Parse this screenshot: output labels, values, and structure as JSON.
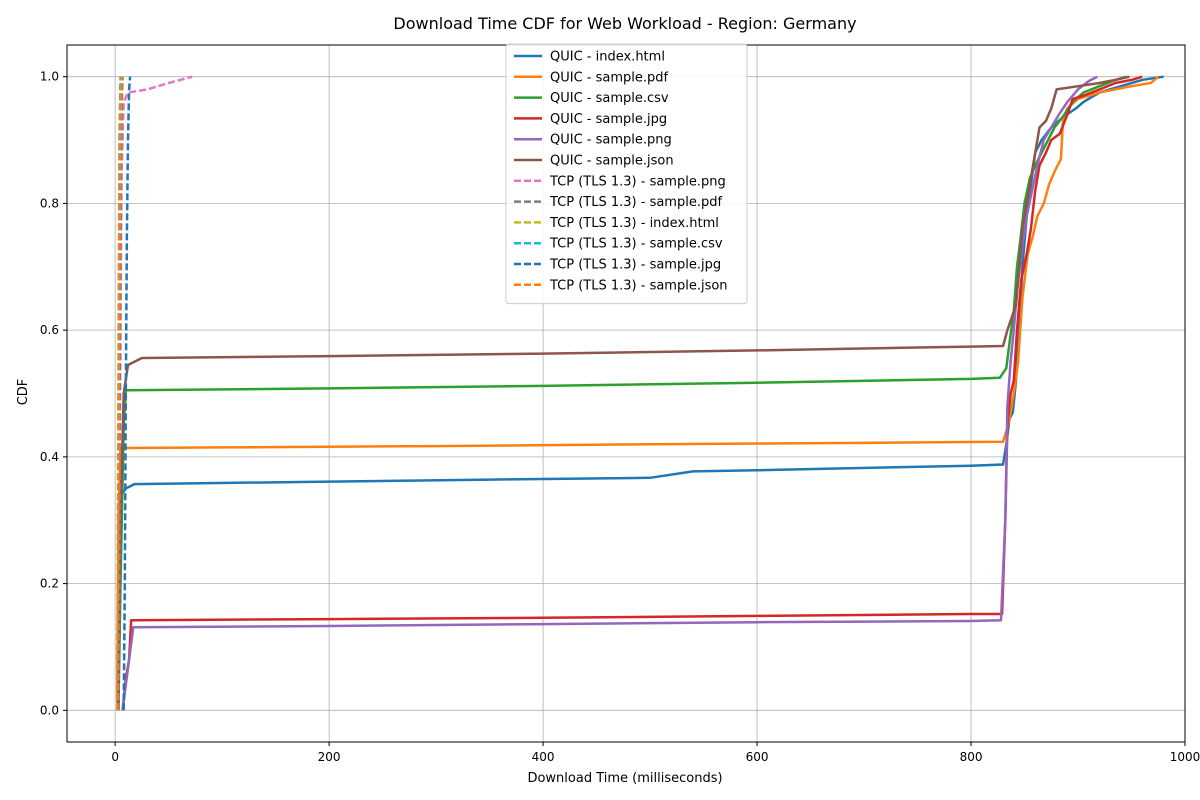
{
  "chart_data": {
    "type": "line",
    "title": "Download Time CDF for Web Workload - Region: Germany",
    "xlabel": "Download Time (milliseconds)",
    "ylabel": "CDF",
    "xlim": [
      -45,
      1000
    ],
    "ylim": [
      -0.05,
      1.05
    ],
    "xticks": [
      0,
      200,
      400,
      600,
      800,
      1000
    ],
    "yticks": [
      0.0,
      0.2,
      0.4,
      0.6,
      0.8,
      1.0
    ],
    "xtick_labels": [
      "0",
      "200",
      "400",
      "600",
      "800",
      "1000"
    ],
    "ytick_labels": [
      "0.0",
      "0.2",
      "0.4",
      "0.6",
      "0.8",
      "1.0"
    ],
    "grid": true,
    "legend_position": "top-center",
    "series": [
      {
        "name": "QUIC - index.html",
        "color": "#1f77b4",
        "dash": "solid",
        "points": [
          [
            3,
            0
          ],
          [
            4,
            0.2
          ],
          [
            6,
            0.34
          ],
          [
            10,
            0.35
          ],
          [
            18,
            0.357
          ],
          [
            200,
            0.361
          ],
          [
            400,
            0.365
          ],
          [
            500,
            0.367
          ],
          [
            540,
            0.377
          ],
          [
            600,
            0.379
          ],
          [
            800,
            0.386
          ],
          [
            830,
            0.388
          ],
          [
            833,
            0.42
          ],
          [
            836,
            0.46
          ],
          [
            839,
            0.47
          ],
          [
            842,
            0.52
          ],
          [
            845,
            0.6
          ],
          [
            848,
            0.7
          ],
          [
            852,
            0.78
          ],
          [
            856,
            0.83
          ],
          [
            860,
            0.88
          ],
          [
            866,
            0.9
          ],
          [
            875,
            0.92
          ],
          [
            885,
            0.935
          ],
          [
            898,
            0.95
          ],
          [
            905,
            0.96
          ],
          [
            920,
            0.975
          ],
          [
            940,
            0.985
          ],
          [
            960,
            0.995
          ],
          [
            980,
            1.0
          ]
        ]
      },
      {
        "name": "QUIC - sample.pdf",
        "color": "#ff7f0e",
        "dash": "solid",
        "points": [
          [
            2,
            0
          ],
          [
            3,
            0.3
          ],
          [
            5,
            0.414
          ],
          [
            100,
            0.415
          ],
          [
            300,
            0.417
          ],
          [
            500,
            0.42
          ],
          [
            700,
            0.422
          ],
          [
            830,
            0.424
          ],
          [
            833,
            0.44
          ],
          [
            836,
            0.46
          ],
          [
            840,
            0.5
          ],
          [
            844,
            0.55
          ],
          [
            848,
            0.65
          ],
          [
            853,
            0.72
          ],
          [
            858,
            0.75
          ],
          [
            862,
            0.78
          ],
          [
            868,
            0.8
          ],
          [
            873,
            0.83
          ],
          [
            878,
            0.85
          ],
          [
            884,
            0.87
          ],
          [
            886,
            0.93
          ],
          [
            890,
            0.95
          ],
          [
            900,
            0.965
          ],
          [
            920,
            0.975
          ],
          [
            950,
            0.985
          ],
          [
            968,
            0.99
          ],
          [
            975,
            1.0
          ]
        ]
      },
      {
        "name": "QUIC - sample.csv",
        "color": "#2ca02c",
        "dash": "solid",
        "points": [
          [
            3,
            0
          ],
          [
            5,
            0.2
          ],
          [
            8,
            0.45
          ],
          [
            10,
            0.505
          ],
          [
            200,
            0.508
          ],
          [
            400,
            0.512
          ],
          [
            600,
            0.517
          ],
          [
            800,
            0.523
          ],
          [
            827,
            0.525
          ],
          [
            833,
            0.54
          ],
          [
            836,
            0.58
          ],
          [
            840,
            0.63
          ],
          [
            843,
            0.7
          ],
          [
            846,
            0.74
          ],
          [
            850,
            0.8
          ],
          [
            855,
            0.84
          ],
          [
            860,
            0.86
          ],
          [
            866,
            0.88
          ],
          [
            872,
            0.9
          ],
          [
            878,
            0.92
          ],
          [
            885,
            0.935
          ],
          [
            895,
            0.96
          ],
          [
            905,
            0.975
          ],
          [
            920,
            0.985
          ],
          [
            935,
            0.995
          ],
          [
            945,
            1.0
          ]
        ]
      },
      {
        "name": "QUIC - sample.jpg",
        "color": "#d62728",
        "dash": "solid",
        "points": [
          [
            7,
            0
          ],
          [
            10,
            0.05
          ],
          [
            13,
            0.08
          ],
          [
            15,
            0.142
          ],
          [
            200,
            0.144
          ],
          [
            400,
            0.146
          ],
          [
            600,
            0.149
          ],
          [
            800,
            0.152
          ],
          [
            829,
            0.152
          ],
          [
            832,
            0.3
          ],
          [
            834,
            0.45
          ],
          [
            837,
            0.5
          ],
          [
            840,
            0.52
          ],
          [
            843,
            0.6
          ],
          [
            847,
            0.68
          ],
          [
            852,
            0.72
          ],
          [
            856,
            0.76
          ],
          [
            860,
            0.82
          ],
          [
            864,
            0.86
          ],
          [
            870,
            0.88
          ],
          [
            875,
            0.9
          ],
          [
            883,
            0.91
          ],
          [
            890,
            0.94
          ],
          [
            895,
            0.965
          ],
          [
            905,
            0.97
          ],
          [
            920,
            0.98
          ],
          [
            935,
            0.99
          ],
          [
            950,
            0.995
          ],
          [
            960,
            1.0
          ]
        ]
      },
      {
        "name": "QUIC - sample.png",
        "color": "#9467bd",
        "dash": "solid",
        "points": [
          [
            7,
            0
          ],
          [
            10,
            0.04
          ],
          [
            13,
            0.08
          ],
          [
            17,
            0.131
          ],
          [
            200,
            0.133
          ],
          [
            400,
            0.136
          ],
          [
            600,
            0.139
          ],
          [
            800,
            0.141
          ],
          [
            828,
            0.142
          ],
          [
            832,
            0.3
          ],
          [
            834,
            0.48
          ],
          [
            837,
            0.55
          ],
          [
            840,
            0.6
          ],
          [
            843,
            0.66
          ],
          [
            847,
            0.72
          ],
          [
            852,
            0.78
          ],
          [
            857,
            0.82
          ],
          [
            862,
            0.86
          ],
          [
            868,
            0.9
          ],
          [
            875,
            0.92
          ],
          [
            882,
            0.94
          ],
          [
            890,
            0.96
          ],
          [
            900,
            0.98
          ],
          [
            910,
            0.993
          ],
          [
            918,
            1.0
          ]
        ]
      },
      {
        "name": "QUIC - sample.json",
        "color": "#8c564b",
        "dash": "solid",
        "points": [
          [
            3,
            0
          ],
          [
            5,
            0.3
          ],
          [
            8,
            0.5
          ],
          [
            12,
            0.545
          ],
          [
            25,
            0.556
          ],
          [
            200,
            0.559
          ],
          [
            400,
            0.563
          ],
          [
            600,
            0.568
          ],
          [
            800,
            0.574
          ],
          [
            830,
            0.575
          ],
          [
            834,
            0.6
          ],
          [
            838,
            0.62
          ],
          [
            842,
            0.64
          ],
          [
            845,
            0.7
          ],
          [
            848,
            0.76
          ],
          [
            852,
            0.8
          ],
          [
            856,
            0.84
          ],
          [
            860,
            0.88
          ],
          [
            864,
            0.92
          ],
          [
            870,
            0.93
          ],
          [
            875,
            0.95
          ],
          [
            880,
            0.98
          ],
          [
            900,
            0.985
          ],
          [
            920,
            0.99
          ],
          [
            935,
            0.995
          ],
          [
            948,
            1.0
          ]
        ]
      },
      {
        "name": "TCP (TLS 1.3) - sample.png",
        "color": "#e377c2",
        "dash": "dashed",
        "points": [
          [
            3,
            0
          ],
          [
            4,
            0.3
          ],
          [
            5,
            0.6
          ],
          [
            6,
            0.85
          ],
          [
            8,
            0.96
          ],
          [
            12,
            0.975
          ],
          [
            30,
            0.98
          ],
          [
            50,
            0.99
          ],
          [
            72,
            1.0
          ]
        ]
      },
      {
        "name": "TCP (TLS 1.3) - sample.pdf",
        "color": "#7f7f7f",
        "dash": "dashed",
        "points": [
          [
            3,
            0
          ],
          [
            4,
            0.4
          ],
          [
            5,
            0.8
          ],
          [
            6,
            0.95
          ],
          [
            7,
            1.0
          ]
        ]
      },
      {
        "name": "TCP (TLS 1.3) - index.html",
        "color": "#bcbd22",
        "dash": "dashed",
        "points": [
          [
            2,
            0
          ],
          [
            3,
            0.4
          ],
          [
            4,
            0.8
          ],
          [
            5,
            0.95
          ],
          [
            6,
            1.0
          ]
        ]
      },
      {
        "name": "TCP (TLS 1.3) - sample.csv",
        "color": "#17becf",
        "dash": "dashed",
        "points": [
          [
            2,
            0
          ],
          [
            3,
            0.5
          ],
          [
            4,
            0.9
          ],
          [
            5,
            1.0
          ]
        ]
      },
      {
        "name": "TCP (TLS 1.3) - sample.jpg",
        "color": "#1f77b4",
        "dash": "dashed",
        "points": [
          [
            8,
            0
          ],
          [
            9,
            0.2
          ],
          [
            10,
            0.5
          ],
          [
            11,
            0.75
          ],
          [
            12,
            0.9
          ],
          [
            13,
            0.98
          ],
          [
            14,
            1.0
          ]
        ]
      },
      {
        "name": "TCP (TLS 1.3) - sample.json",
        "color": "#ff7f0e",
        "dash": "dashed",
        "points": [
          [
            2,
            0
          ],
          [
            3,
            0.4
          ],
          [
            4,
            0.8
          ],
          [
            5,
            0.95
          ],
          [
            6,
            1.0
          ]
        ]
      }
    ]
  }
}
